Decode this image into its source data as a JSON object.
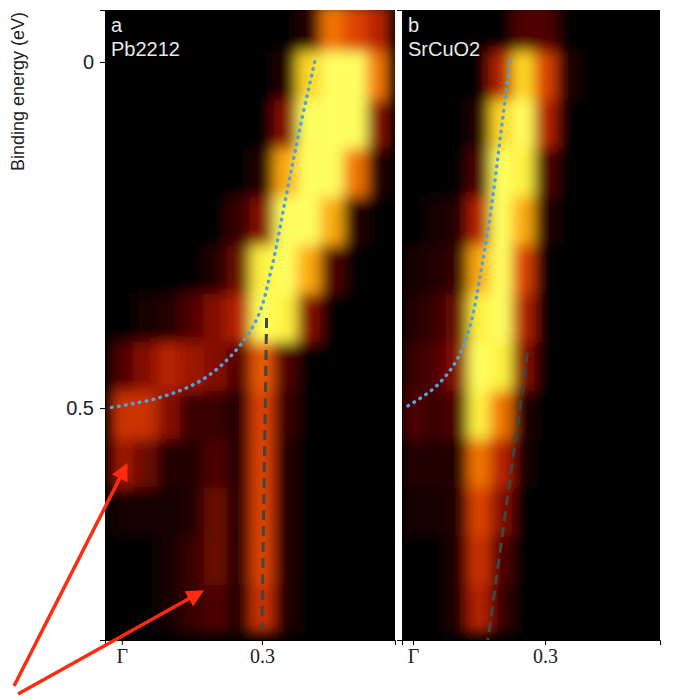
{
  "chart_data": [
    {
      "type": "heatmap",
      "panel_label": "a",
      "title": "Pb2212",
      "y_label": "Binding energy (eV)",
      "xlim": [
        -0.036,
        0.585
      ],
      "xticks": [
        {
          "value": 0,
          "label": "Γ"
        },
        0.3
      ],
      "ylim": [
        -0.075,
        0.835
      ],
      "yticks": [
        0,
        0.5
      ],
      "grid": false,
      "heatmap": {
        "x": [
          0,
          0.05,
          0.1,
          0.15,
          0.2,
          0.25,
          0.3,
          0.35,
          0.4,
          0.45,
          0.5,
          0.55
        ],
        "y": [
          -0.05,
          0.02,
          0.09,
          0.16,
          0.23,
          0.3,
          0.37,
          0.44,
          0.51,
          0.58,
          0.65,
          0.72,
          0.79
        ],
        "zlim": [
          0,
          1
        ],
        "z": [
          [
            0,
            0,
            0,
            0,
            0,
            0,
            0,
            0,
            0.1,
            0.6,
            0.5,
            0.4
          ],
          [
            0,
            0,
            0,
            0,
            0,
            0,
            0,
            0.1,
            0.8,
            1,
            1,
            0.6
          ],
          [
            0,
            0,
            0,
            0,
            0,
            0,
            0,
            0.3,
            1,
            1,
            1,
            0.3
          ],
          [
            0,
            0,
            0,
            0,
            0,
            0,
            0.1,
            0.7,
            1,
            1,
            0.6,
            0.1
          ],
          [
            0,
            0,
            0,
            0,
            0,
            0.15,
            0.3,
            1,
            1,
            0.7,
            0.1,
            0
          ],
          [
            0,
            0,
            0,
            0,
            0.1,
            0.25,
            0.9,
            1,
            0.7,
            0.2,
            0,
            0
          ],
          [
            0,
            0.05,
            0.1,
            0.2,
            0.3,
            0.4,
            1,
            0.9,
            0.3,
            0,
            0,
            0
          ],
          [
            0.2,
            0.3,
            0.4,
            0.35,
            0.3,
            0.2,
            0.55,
            0.2,
            0,
            0,
            0,
            0
          ],
          [
            0.45,
            0.45,
            0.3,
            0.15,
            0.15,
            0.1,
            0.5,
            0.15,
            0,
            0,
            0,
            0
          ],
          [
            0.35,
            0.25,
            0.1,
            0.1,
            0.2,
            0.1,
            0.5,
            0.1,
            0,
            0,
            0,
            0
          ],
          [
            0.05,
            0.05,
            0.05,
            0.1,
            0.25,
            0.1,
            0.5,
            0.1,
            0,
            0,
            0,
            0
          ],
          [
            0,
            0,
            0.05,
            0.15,
            0.25,
            0.1,
            0.5,
            0.1,
            0,
            0,
            0,
            0
          ],
          [
            0,
            0,
            0.05,
            0.15,
            0.2,
            0.1,
            0.45,
            0.1,
            0,
            0,
            0,
            0
          ]
        ]
      },
      "series": [
        {
          "type": "line",
          "color": "#4fa3dc",
          "line_style": "dotted",
          "x": [
            0.413,
            0.38,
            0.35,
            0.32,
            0.29,
            0.24,
            0.17,
            0.08,
            -0.03
          ],
          "values": [
            0,
            0.1,
            0.2,
            0.3,
            0.37,
            0.42,
            0.46,
            0.485,
            0.5
          ]
        },
        {
          "type": "line",
          "color": "#444444",
          "line_style": "dashed",
          "x": [
            0.31,
            0.3
          ],
          "values": [
            0.37,
            0.82
          ]
        }
      ]
    },
    {
      "type": "heatmap",
      "panel_label": "b",
      "title": "SrCuO2",
      "xlim": [
        -0.025,
        0.561
      ],
      "xticks": [
        {
          "value": 0,
          "label": "Γ"
        },
        0.3
      ],
      "ylim": [
        -0.075,
        0.835
      ],
      "grid": false,
      "tick_labels": "x",
      "heatmap": {
        "x": [
          0,
          0.05,
          0.1,
          0.15,
          0.2,
          0.25,
          0.3,
          0.35,
          0.4,
          0.45,
          0.5,
          0.55
        ],
        "y": [
          -0.05,
          0.02,
          0.09,
          0.16,
          0.23,
          0.3,
          0.37,
          0.44,
          0.51,
          0.58,
          0.65,
          0.72,
          0.79
        ],
        "zlim": [
          0,
          1
        ],
        "z": [
          [
            0,
            0,
            0,
            0,
            0,
            0.2,
            0.2,
            0,
            0,
            0,
            0,
            0
          ],
          [
            0,
            0,
            0,
            0,
            0.4,
            0.8,
            0.5,
            0.1,
            0,
            0,
            0,
            0
          ],
          [
            0,
            0,
            0,
            0.1,
            0.8,
            1,
            0.4,
            0,
            0,
            0,
            0,
            0
          ],
          [
            0,
            0,
            0,
            0.2,
            1,
            0.9,
            0.2,
            0,
            0,
            0,
            0,
            0
          ],
          [
            0,
            0.05,
            0.1,
            0.4,
            1,
            0.7,
            0.1,
            0,
            0,
            0,
            0,
            0
          ],
          [
            0.05,
            0.1,
            0.15,
            0.7,
            1,
            0.5,
            0,
            0,
            0,
            0,
            0,
            0
          ],
          [
            0.1,
            0.15,
            0.25,
            0.9,
            1,
            0.4,
            0,
            0,
            0,
            0,
            0,
            0
          ],
          [
            0.15,
            0.2,
            0.3,
            1,
            0.9,
            0.3,
            0,
            0,
            0,
            0,
            0,
            0
          ],
          [
            0.2,
            0.15,
            0.2,
            0.9,
            0.6,
            0.1,
            0,
            0,
            0,
            0,
            0,
            0
          ],
          [
            0.1,
            0.1,
            0.1,
            0.6,
            0.4,
            0.05,
            0,
            0,
            0,
            0,
            0,
            0
          ],
          [
            0.05,
            0.05,
            0.1,
            0.5,
            0.3,
            0,
            0,
            0,
            0,
            0,
            0,
            0
          ],
          [
            0,
            0,
            0.1,
            0.45,
            0.2,
            0,
            0,
            0,
            0,
            0,
            0,
            0
          ],
          [
            0,
            0,
            0.1,
            0.4,
            0.15,
            0,
            0,
            0,
            0,
            0,
            0,
            0
          ]
        ]
      },
      "series": [
        {
          "type": "line",
          "color": "#4fa3dc",
          "line_style": "dotted",
          "x": [
            0.22,
            0.2,
            0.18,
            0.155,
            0.13,
            0.1,
            0.05,
            -0.02
          ],
          "values": [
            0,
            0.1,
            0.2,
            0.3,
            0.38,
            0.43,
            0.47,
            0.5
          ]
        },
        {
          "type": "line",
          "color": "#444444",
          "line_style": "dashed",
          "x": [
            0.26,
            0.17
          ],
          "values": [
            0.42,
            0.835
          ]
        }
      ]
    }
  ]
}
